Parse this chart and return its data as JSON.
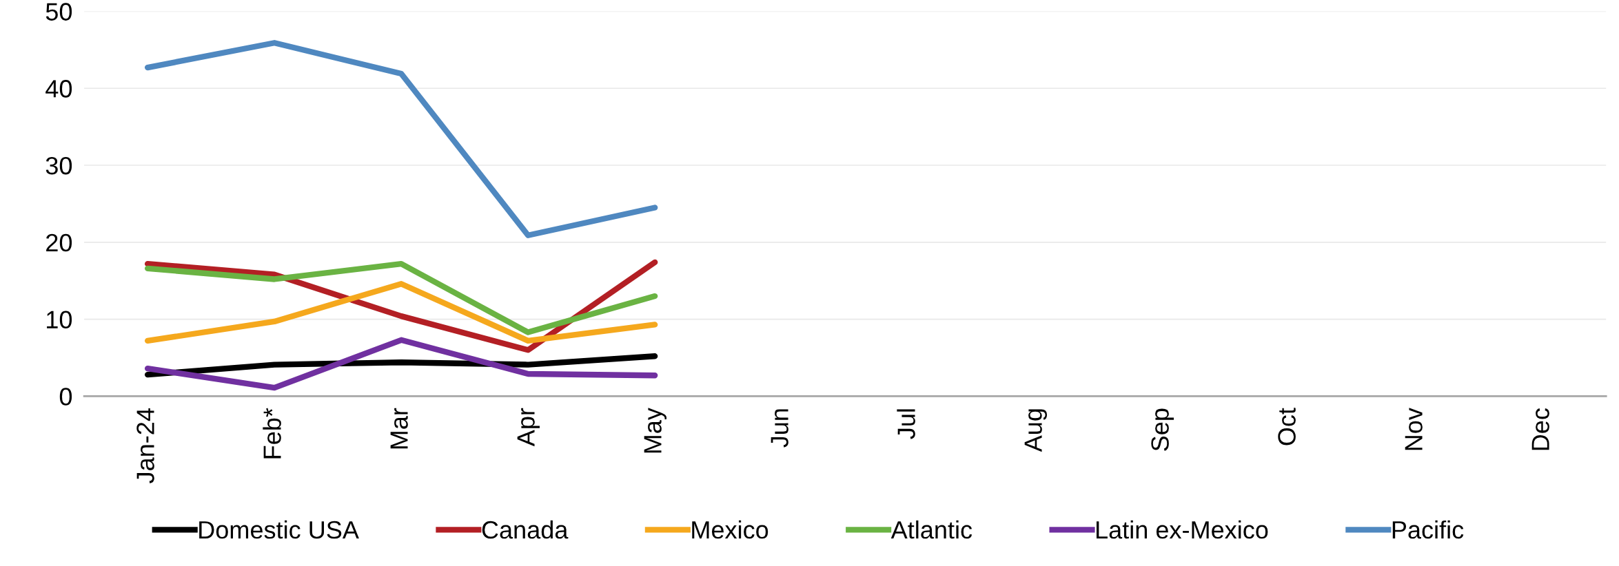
{
  "chart_data": {
    "type": "line",
    "categories": [
      "Jan-24",
      "Feb*",
      "Mar",
      "Apr",
      "May",
      "Jun",
      "Jul",
      "Aug",
      "Sep",
      "Oct",
      "Nov",
      "Dec"
    ],
    "series": [
      {
        "name": "Domestic USA",
        "color": "#000000",
        "values": [
          2.8,
          4.1,
          4.4,
          4.1,
          5.2,
          null,
          null,
          null,
          null,
          null,
          null,
          null
        ]
      },
      {
        "name": "Canada",
        "color": "#b31f24",
        "values": [
          17.2,
          15.8,
          10.4,
          6.0,
          17.4,
          null,
          null,
          null,
          null,
          null,
          null,
          null
        ]
      },
      {
        "name": "Mexico",
        "color": "#f5a81d",
        "values": [
          7.2,
          9.7,
          14.6,
          7.2,
          9.3,
          null,
          null,
          null,
          null,
          null,
          null,
          null
        ]
      },
      {
        "name": "Atlantic",
        "color": "#6ab343",
        "values": [
          16.6,
          15.2,
          17.2,
          8.3,
          13.0,
          null,
          null,
          null,
          null,
          null,
          null,
          null
        ]
      },
      {
        "name": "Latin ex-Mexico",
        "color": "#7030a0",
        "values": [
          3.6,
          1.1,
          7.3,
          2.9,
          2.7,
          null,
          null,
          null,
          null,
          null,
          null,
          null
        ]
      },
      {
        "name": "Pacific",
        "color": "#4f88c0",
        "values": [
          42.7,
          45.9,
          41.9,
          20.9,
          24.5,
          null,
          null,
          null,
          null,
          null,
          null,
          null
        ]
      }
    ],
    "ylim": [
      0,
      50
    ],
    "yticks": [
      0,
      10,
      20,
      30,
      40,
      50
    ],
    "grid": "y",
    "legend": "bottom",
    "marker": "none",
    "line_style": "solid"
  }
}
